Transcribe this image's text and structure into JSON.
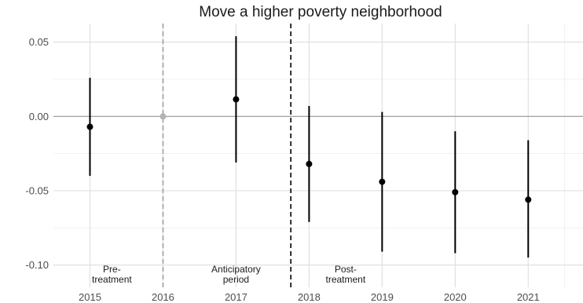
{
  "chart_data": {
    "type": "scatter",
    "title": "Move a higher poverty neighborhood",
    "xlabel": "",
    "ylabel": "",
    "x": [
      2015,
      2016,
      2017,
      2018,
      2019,
      2020,
      2021
    ],
    "x_tick_labels": [
      "2015",
      "2016",
      "2017",
      "2018",
      "2019",
      "2020",
      "2021"
    ],
    "y_ticks": [
      0.05,
      0.0,
      -0.05,
      -0.1
    ],
    "y_tick_labels": [
      "0.05",
      "0.00",
      "-0.05",
      "-0.10"
    ],
    "xlim": [
      2014.5,
      2021.75
    ],
    "ylim": [
      -0.115,
      0.0625
    ],
    "grid": true,
    "legend": "none",
    "series": [
      {
        "estimate": [
          -0.007,
          0.0,
          0.0115,
          -0.032,
          -0.044,
          -0.051,
          -0.056
        ],
        "ci_low": [
          -0.04,
          0.0,
          -0.031,
          -0.071,
          -0.091,
          -0.092,
          -0.095
        ],
        "ci_high": [
          0.026,
          0.0,
          0.054,
          0.007,
          0.003,
          -0.01,
          -0.016
        ],
        "reference_index": 1
      }
    ],
    "reference_line": {
      "x": 2016,
      "style": "dashed",
      "color": "#9e9e9e"
    },
    "treatment_line": {
      "x": 2017.75,
      "style": "dashed",
      "color": "#000000"
    },
    "zero_line": {
      "y": 0
    },
    "period_labels": [
      {
        "lines": [
          "Pre-",
          "treatment"
        ],
        "x": 2015.3
      },
      {
        "lines": [
          "Anticipatory",
          "period"
        ],
        "x": 2017.0
      },
      {
        "lines": [
          "Post-",
          "treatment"
        ],
        "x": 2018.5
      }
    ],
    "colors": {
      "point": "#000000",
      "reference_point": "#b3b3b3",
      "grid": "#e0e0e0",
      "zero": "#a6a6a6"
    }
  }
}
